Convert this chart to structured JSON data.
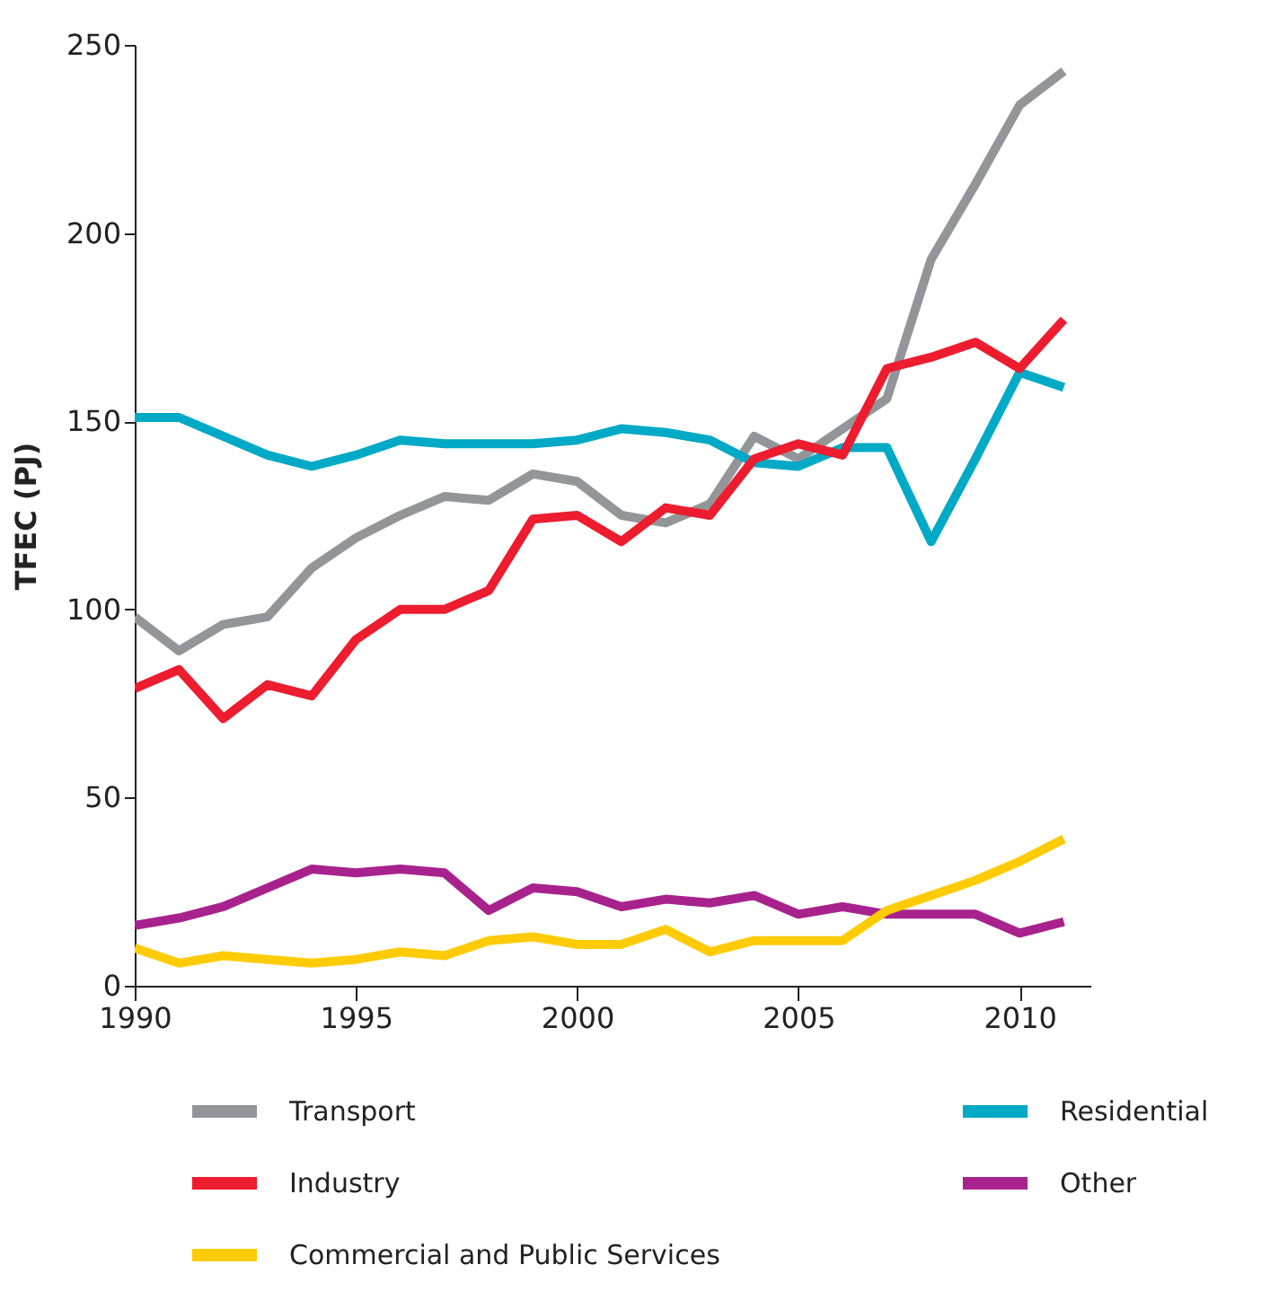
{
  "chart_data": {
    "type": "line",
    "ylabel": "TFEC (PJ)",
    "x": [
      1990,
      1991,
      1992,
      1993,
      1994,
      1995,
      1996,
      1997,
      1998,
      1999,
      2000,
      2001,
      2002,
      2003,
      2004,
      2005,
      2006,
      2007,
      2008,
      2009,
      2010,
      2011
    ],
    "series": [
      {
        "name": "Transport",
        "color": "#939598",
        "values": [
          98,
          89,
          96,
          98,
          111,
          119,
          125,
          130,
          129,
          136,
          134,
          125,
          123,
          128,
          146,
          140,
          148,
          156,
          193,
          213,
          234,
          243
        ]
      },
      {
        "name": "Residential",
        "color": "#00a9c5",
        "values": [
          151,
          151,
          146,
          141,
          138,
          141,
          145,
          144,
          144,
          144,
          145,
          148,
          147,
          145,
          139,
          138,
          143,
          143,
          118,
          140,
          163,
          159
        ]
      },
      {
        "name": "Industry",
        "color": "#ed1c2e",
        "values": [
          79,
          84,
          71,
          80,
          77,
          92,
          100,
          100,
          105,
          124,
          125,
          118,
          127,
          125,
          140,
          144,
          141,
          164,
          167,
          171,
          164,
          177
        ]
      },
      {
        "name": "Other",
        "color": "#a8228e",
        "values": [
          16,
          18,
          21,
          26,
          31,
          30,
          31,
          30,
          20,
          26,
          25,
          21,
          23,
          22,
          24,
          19,
          21,
          19,
          19,
          19,
          14,
          17
        ]
      },
      {
        "name": "Commercial and Public Services",
        "color": "#ffcb05",
        "values": [
          10,
          6,
          8,
          7,
          6,
          7,
          9,
          8,
          12,
          13,
          11,
          11,
          15,
          9,
          12,
          12,
          12,
          20,
          24,
          28,
          33,
          39
        ]
      }
    ],
    "xlim": [
      1990,
      2011.6
    ],
    "xticks": [
      1990,
      1995,
      2000,
      2005,
      2010
    ],
    "ylim": [
      0,
      250
    ],
    "yticks": [
      0,
      50,
      100,
      150,
      200,
      250
    ],
    "grid": false,
    "legend": "bottom",
    "line_style": "solid"
  }
}
